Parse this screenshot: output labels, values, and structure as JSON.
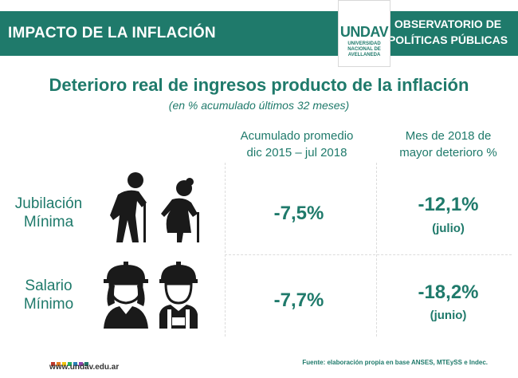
{
  "header": {
    "left_title": "IMPACTO DE LA INFLACIÓN",
    "right_line1": "OBSERVATORIO DE",
    "right_line2": "POLÍTICAS PÚBLICAS"
  },
  "logo": {
    "word": "UNDAV",
    "line1": "UNIVERSIDAD",
    "line2": "NACIONAL DE",
    "line3": "AVELLANEDA"
  },
  "title": "Deterioro real de ingresos producto de la inflación",
  "subtitle": "(en % acumulado últimos 32 meses)",
  "columns": [
    {
      "line1": "Acumulado promedio",
      "line2": "dic 2015 – jul 2018"
    },
    {
      "line1": "Mes de 2018 de",
      "line2": "mayor deterioro %"
    }
  ],
  "rows": [
    {
      "label_line1": "Jubilación",
      "label_line2": "Mínima",
      "icon": "elderly-couple-icon",
      "accumulated": "-7,5%",
      "worst": "-12,1%",
      "worst_month": "(julio)"
    },
    {
      "label_line1": "Salario",
      "label_line2": "Mínimo",
      "icon": "workers-hardhat-icon",
      "accumulated": "-7,7%",
      "worst": "-18,2%",
      "worst_month": "(junio)"
    }
  ],
  "footer": {
    "url": "www.undav.edu.ar",
    "source": "Fuente: elaboración propia en base ANSES, MTEySS e Indec.",
    "square_colors": [
      "#c0392b",
      "#e67e22",
      "#f1c40f",
      "#27ae60",
      "#2980b9",
      "#8e44ad",
      "#1f7a6b"
    ]
  },
  "colors": {
    "accent": "#1f7a6b",
    "icon": "#1a1a1a"
  }
}
